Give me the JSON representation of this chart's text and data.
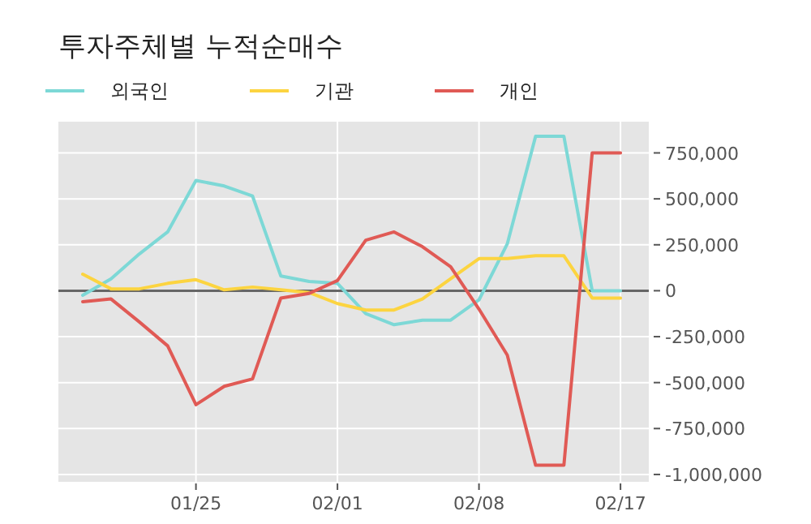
{
  "chart_data": {
    "type": "line",
    "title": "투자주체별 누적순매수",
    "categories": [
      null,
      null,
      null,
      null,
      "01/25",
      null,
      null,
      null,
      null,
      "02/01",
      null,
      null,
      null,
      null,
      "02/08",
      null,
      null,
      null,
      null,
      "02/17"
    ],
    "series": [
      {
        "name": "외국인",
        "color": "#7dd8d6",
        "values": [
          -25000,
          65000,
          200000,
          320000,
          600000,
          570000,
          515000,
          80000,
          50000,
          40000,
          -125000,
          -185000,
          -160000,
          -160000,
          -50000,
          255000,
          840000,
          840000,
          0,
          0
        ]
      },
      {
        "name": "기관",
        "color": "#fcd440",
        "values": [
          90000,
          10000,
          10000,
          40000,
          60000,
          5000,
          20000,
          5000,
          -10000,
          -70000,
          -105000,
          -105000,
          -45000,
          65000,
          175000,
          175000,
          190000,
          190000,
          -40000,
          -40000
        ]
      },
      {
        "name": "개인",
        "color": "#e05a55",
        "values": [
          -60000,
          -45000,
          -170000,
          -300000,
          -620000,
          -520000,
          -480000,
          -40000,
          -15000,
          55000,
          275000,
          320000,
          240000,
          130000,
          -100000,
          -350000,
          -950000,
          -950000,
          750000,
          750000
        ]
      }
    ],
    "ylim": [
      -1040000,
      920000
    ],
    "yticks": [
      {
        "value": 750000,
        "label": "750,000"
      },
      {
        "value": 500000,
        "label": "500,000"
      },
      {
        "value": 250000,
        "label": "250,000"
      },
      0,
      {
        "value": -250000,
        "label": "-250,000"
      },
      {
        "value": -500000,
        "label": "-500,000"
      },
      {
        "value": -750000,
        "label": "-750,000"
      },
      {
        "value": -1000000,
        "label": "-1,000,000"
      }
    ],
    "ref_lines": [
      {
        "axis": "y",
        "value": 0,
        "color": "#666666"
      }
    ],
    "grid": true,
    "legend": "top left",
    "line_style": "solid",
    "marker": "none"
  }
}
